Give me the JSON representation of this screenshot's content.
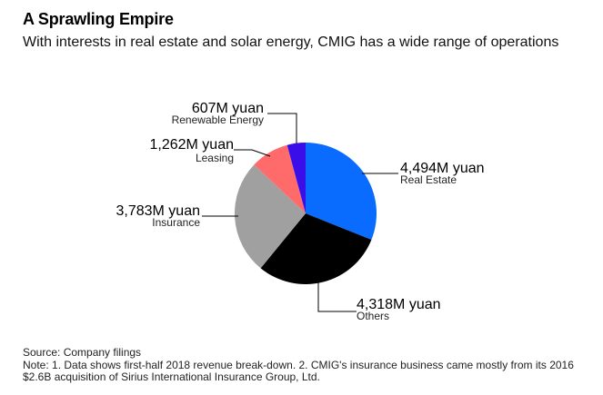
{
  "title": "A Sprawling Empire",
  "subtitle": "With interests in real estate and solar energy, CMIG has a wide range of operations",
  "chart_data": {
    "type": "pie",
    "unit": "M yuan",
    "slices": [
      {
        "label": "Real Estate",
        "value": 4494,
        "value_label": "4,494M yuan",
        "color": "#0a6cff"
      },
      {
        "label": "Others",
        "value": 4318,
        "value_label": "4,318M yuan",
        "color": "#000000"
      },
      {
        "label": "Insurance",
        "value": 3783,
        "value_label": "3,783M yuan",
        "color": "#a0a0a0"
      },
      {
        "label": "Leasing",
        "value": 1262,
        "value_label": "1,262M yuan",
        "color": "#ff6b6b"
      },
      {
        "label": "Renewable Energy",
        "value": 607,
        "value_label": "607M yuan",
        "color": "#3a0ee8"
      }
    ]
  },
  "footer": {
    "source": "Source: Company filings",
    "note": "Note: 1. Data shows first-half 2018 revenue break-down. 2. CMIG's insurance business came mostly from its 2016 $2.6B acquisition of Sirius International Insurance Group, Ltd."
  }
}
